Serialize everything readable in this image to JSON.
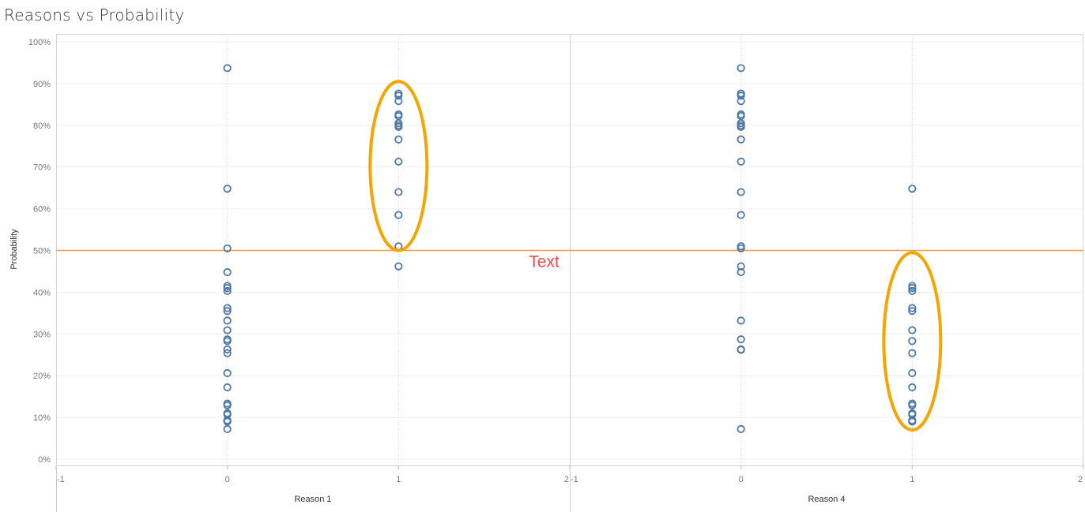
{
  "page": {
    "title": "Reasons vs Probability"
  },
  "chart_data": {
    "type": "scatter",
    "title": "Reasons vs Probability",
    "ylabel": "Probability",
    "ylim": [
      0,
      1
    ],
    "y_ticks": [
      "0%",
      "10%",
      "20%",
      "30%",
      "40%",
      "50%",
      "60%",
      "70%",
      "80%",
      "90%",
      "100%"
    ],
    "y_tick_values": [
      0,
      0.1,
      0.2,
      0.3,
      0.4,
      0.5,
      0.6,
      0.7,
      0.8,
      0.9,
      1.0
    ],
    "reference_line": {
      "y": 0.5,
      "color": "#f4a14d"
    },
    "marker_color": "#4e79a7",
    "annotation": {
      "text": "Text",
      "color": "#f04a4a",
      "x_panel": 0,
      "x": 1.85,
      "y": 0.46
    },
    "highlight_color": "#f5a500",
    "highlights": [
      {
        "panel": 0,
        "x": 1,
        "y_range": [
          0.5,
          0.905
        ]
      },
      {
        "panel": 1,
        "x": 1,
        "y_range": [
          0.07,
          0.495
        ]
      }
    ],
    "panels": [
      {
        "xlabel": "Reason 1",
        "xlim": [
          -1,
          2
        ],
        "x_ticks": [
          "-1",
          "0",
          "1",
          "2"
        ],
        "x_tick_values": [
          -1,
          0,
          1,
          2
        ],
        "points": [
          {
            "x": 0,
            "y": 0.937
          },
          {
            "x": 0,
            "y": 0.648
          },
          {
            "x": 0,
            "y": 0.505
          },
          {
            "x": 0,
            "y": 0.448
          },
          {
            "x": 0,
            "y": 0.415
          },
          {
            "x": 0,
            "y": 0.41
          },
          {
            "x": 0,
            "y": 0.403
          },
          {
            "x": 0,
            "y": 0.362
          },
          {
            "x": 0,
            "y": 0.355
          },
          {
            "x": 0,
            "y": 0.332
          },
          {
            "x": 0,
            "y": 0.309
          },
          {
            "x": 0,
            "y": 0.287
          },
          {
            "x": 0,
            "y": 0.283
          },
          {
            "x": 0,
            "y": 0.263
          },
          {
            "x": 0,
            "y": 0.254
          },
          {
            "x": 0,
            "y": 0.206
          },
          {
            "x": 0,
            "y": 0.172
          },
          {
            "x": 0,
            "y": 0.133
          },
          {
            "x": 0,
            "y": 0.129
          },
          {
            "x": 0,
            "y": 0.11
          },
          {
            "x": 0,
            "y": 0.107
          },
          {
            "x": 0,
            "y": 0.093
          },
          {
            "x": 0,
            "y": 0.09
          },
          {
            "x": 0,
            "y": 0.072
          },
          {
            "x": 1,
            "y": 0.876
          },
          {
            "x": 1,
            "y": 0.871
          },
          {
            "x": 1,
            "y": 0.858
          },
          {
            "x": 1,
            "y": 0.826
          },
          {
            "x": 1,
            "y": 0.822
          },
          {
            "x": 1,
            "y": 0.805
          },
          {
            "x": 1,
            "y": 0.8
          },
          {
            "x": 1,
            "y": 0.796
          },
          {
            "x": 1,
            "y": 0.766
          },
          {
            "x": 1,
            "y": 0.713
          },
          {
            "x": 1,
            "y": 0.64
          },
          {
            "x": 1,
            "y": 0.585
          },
          {
            "x": 1,
            "y": 0.51
          },
          {
            "x": 1,
            "y": 0.462
          }
        ]
      },
      {
        "xlabel": "Reason 4",
        "xlim": [
          -1,
          2
        ],
        "x_ticks": [
          "-1",
          "0",
          "1",
          "2"
        ],
        "x_tick_values": [
          -1,
          0,
          1,
          2
        ],
        "points": [
          {
            "x": 0,
            "y": 0.937
          },
          {
            "x": 0,
            "y": 0.876
          },
          {
            "x": 0,
            "y": 0.871
          },
          {
            "x": 0,
            "y": 0.858
          },
          {
            "x": 0,
            "y": 0.826
          },
          {
            "x": 0,
            "y": 0.822
          },
          {
            "x": 0,
            "y": 0.805
          },
          {
            "x": 0,
            "y": 0.8
          },
          {
            "x": 0,
            "y": 0.796
          },
          {
            "x": 0,
            "y": 0.766
          },
          {
            "x": 0,
            "y": 0.713
          },
          {
            "x": 0,
            "y": 0.64
          },
          {
            "x": 0,
            "y": 0.585
          },
          {
            "x": 0,
            "y": 0.51
          },
          {
            "x": 0,
            "y": 0.505
          },
          {
            "x": 0,
            "y": 0.462
          },
          {
            "x": 0,
            "y": 0.448
          },
          {
            "x": 0,
            "y": 0.332
          },
          {
            "x": 0,
            "y": 0.287
          },
          {
            "x": 0,
            "y": 0.263
          },
          {
            "x": 0,
            "y": 0.262
          },
          {
            "x": 0,
            "y": 0.072
          },
          {
            "x": 1,
            "y": 0.648
          },
          {
            "x": 1,
            "y": 0.415
          },
          {
            "x": 1,
            "y": 0.41
          },
          {
            "x": 1,
            "y": 0.403
          },
          {
            "x": 1,
            "y": 0.362
          },
          {
            "x": 1,
            "y": 0.355
          },
          {
            "x": 1,
            "y": 0.309
          },
          {
            "x": 1,
            "y": 0.283
          },
          {
            "x": 1,
            "y": 0.254
          },
          {
            "x": 1,
            "y": 0.206
          },
          {
            "x": 1,
            "y": 0.172
          },
          {
            "x": 1,
            "y": 0.133
          },
          {
            "x": 1,
            "y": 0.129
          },
          {
            "x": 1,
            "y": 0.11
          },
          {
            "x": 1,
            "y": 0.107
          },
          {
            "x": 1,
            "y": 0.093
          },
          {
            "x": 1,
            "y": 0.09
          }
        ]
      }
    ]
  }
}
